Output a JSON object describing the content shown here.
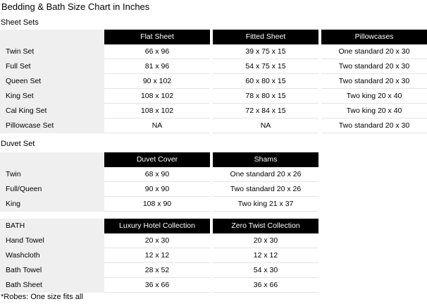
{
  "page": {
    "title": "Bedding & Bath Size Chart in Inches",
    "footnote": "*Robes: One size fits all"
  },
  "colors": {
    "header_bg": "#000000",
    "header_text": "#ffffff",
    "label_column_bg": "#efefef",
    "row_border": "#e4e4e4",
    "page_bg": "#ffffff",
    "text": "#000000"
  },
  "sections": [
    {
      "label": "Sheet Sets",
      "table": {
        "corner_label": "",
        "columns": [
          "Flat Sheet",
          "Fitted Sheet",
          "Pillowcases"
        ],
        "rows": [
          {
            "label": "Twin Set",
            "cells": [
              "66 x 96",
              "39 x 75 x 15",
              "One standard 20 x 30"
            ]
          },
          {
            "label": "Full Set",
            "cells": [
              "81 x 96",
              "54 x 75 x 15",
              "Two standard 20 x 30"
            ]
          },
          {
            "label": "Queen Set",
            "cells": [
              "90 x 102",
              "60 x 80 x 15",
              "Two standard 20 x 30"
            ]
          },
          {
            "label": "King Set",
            "cells": [
              "108 x 102",
              "78 x 80 x 15",
              "Two king 20 x 40"
            ]
          },
          {
            "label": "Cal King Set",
            "cells": [
              "108 x 102",
              "72 x 84 x 15",
              "Two king 20 x 40"
            ]
          },
          {
            "label": "Pillowcase Set",
            "cells": [
              "NA",
              "NA",
              "Two standard 20 x 30"
            ]
          }
        ]
      }
    },
    {
      "label": "Duvet Set",
      "table": {
        "corner_label": "",
        "columns": [
          "Duvet Cover",
          "Shams"
        ],
        "rows": [
          {
            "label": "Twin",
            "cells": [
              "68 x 90",
              "One standard 20 x 26"
            ]
          },
          {
            "label": "Full/Queen",
            "cells": [
              "90 x 90",
              "Two standard 20 x 26"
            ]
          },
          {
            "label": "King",
            "cells": [
              "108 x 90",
              "Two king 21 x 37"
            ]
          }
        ]
      }
    },
    {
      "table": {
        "corner_label": "BATH",
        "columns": [
          "Luxury Hotel Collection",
          "Zero Twist Collection"
        ],
        "rows": [
          {
            "label": "Hand Towel",
            "cells": [
              "20 x 30",
              "20 x 30"
            ]
          },
          {
            "label": "Washcloth",
            "cells": [
              "12 x 12",
              "12 x 12"
            ]
          },
          {
            "label": "Bath Towel",
            "cells": [
              "28 x 52",
              "54 x 30"
            ]
          },
          {
            "label": "Bath Sheet",
            "cells": [
              "36 x 66",
              "36 x 66"
            ]
          }
        ]
      }
    }
  ]
}
